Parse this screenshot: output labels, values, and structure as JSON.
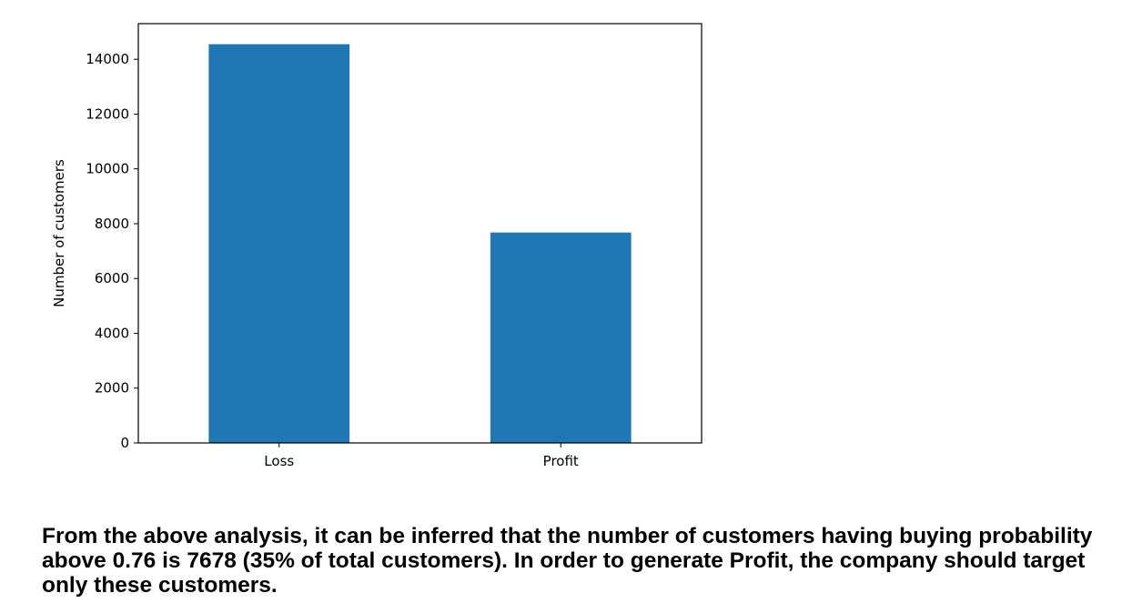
{
  "chart_data": {
    "type": "bar",
    "categories": [
      "Loss",
      "Profit"
    ],
    "values": [
      14550,
      7678
    ],
    "xlabel": "",
    "ylabel": "Number of customers",
    "ylim": [
      0,
      15300
    ],
    "yticks": [
      0,
      2000,
      4000,
      6000,
      8000,
      10000,
      12000,
      14000
    ],
    "grid": false,
    "bar_color": "#1f77b4"
  },
  "summary": {
    "text": "From the above analysis, it can be inferred that the number of customers having buying probability above 0.76 is 7678 (35% of total customers). In order to generate Profit, the company should target only these customers."
  }
}
